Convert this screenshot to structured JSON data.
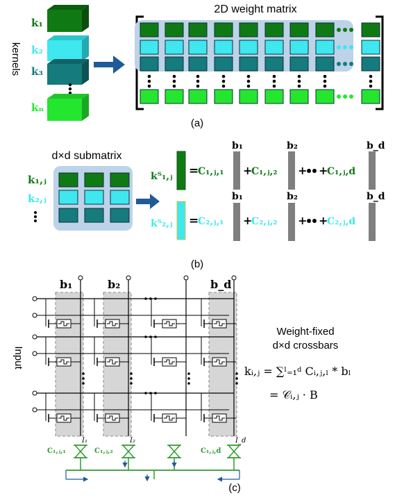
{
  "colors": {
    "dark_green": "#0f7a14",
    "cyan": "#3fe7ee",
    "teal": "#157b7d",
    "bright_green": "#25e62f",
    "arrow_blue": "#1f5a9a",
    "highlight_blue": "#bcd3e8",
    "gray_column": "#d6d6d6",
    "bar_gray": "#7f7f7f",
    "circuit_green": "#2f9a2f"
  },
  "panel_a": {
    "side_label": "kernels",
    "kernels": [
      "k₁",
      "k₂",
      "k₃",
      "kₙ"
    ],
    "matrix_title": "2D weight matrix",
    "caption": "(a)"
  },
  "panel_b": {
    "submatrix_title": "d×d submatrix",
    "rows": [
      "k₁,ⱼ",
      "k₂,ⱼ"
    ],
    "transposed": [
      "kᵀ₁,ⱼ",
      "kᵀ₂,ⱼ"
    ],
    "equals": "=",
    "plus": "+",
    "coefficients_row1": [
      "C₁,ⱼ,₁",
      "C₁,ⱼ,₂",
      "C₁,ⱼ,d"
    ],
    "coefficients_row2": [
      "C₂,ⱼ,₁",
      "C₂,ⱼ,₂",
      "C₂,ⱼ,d"
    ],
    "basis": [
      "b₁",
      "b₂",
      "b_d"
    ],
    "caption": "(b)"
  },
  "panel_c": {
    "basis": [
      "b₁",
      "b₂",
      "b_d"
    ],
    "input_label": "Input",
    "title_line1": "Weight-fixed",
    "title_line2": "d×d crossbars",
    "equation1": "kᵢ,ⱼ = ∑ˡ₌₁ᵈ Cᵢ,ⱼ,ₗ * bₗ",
    "equation2": "= 𝒞ᵢ,ⱼ · B",
    "currents": [
      "I₁",
      "I₂",
      "I_d"
    ],
    "coefficients": [
      "C₁,ⱼ,₁",
      "C₁,ⱼ,₂",
      "C₁,ⱼ,d"
    ],
    "caption": "(c)"
  }
}
